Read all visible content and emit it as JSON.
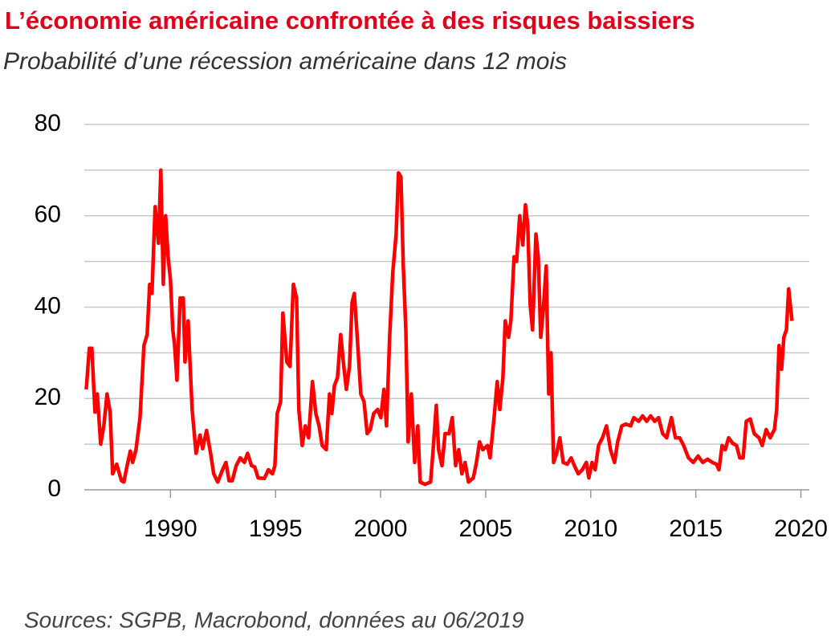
{
  "chart_data": {
    "type": "line",
    "title": "L’économie américaine confrontée à des risques baissiers",
    "subtitle": "Probabilité d’une récession américaine dans 12 mois",
    "source": "Sources: SGPB, Macrobond, données au 06/2019",
    "x": [
      1985.99,
      1986.14,
      1986.26,
      1986.41,
      1986.52,
      1986.68,
      1986.83,
      1986.98,
      1987.13,
      1987.25,
      1987.44,
      1987.67,
      1987.78,
      1987.97,
      1988.09,
      1988.2,
      1988.36,
      1988.55,
      1988.74,
      1988.89,
      1989.01,
      1989.12,
      1989.27,
      1989.43,
      1989.54,
      1989.66,
      1989.77,
      1989.89,
      1990.0,
      1990.11,
      1990.19,
      1990.31,
      1990.46,
      1990.61,
      1990.69,
      1990.84,
      1991.03,
      1991.22,
      1991.41,
      1991.53,
      1991.72,
      1991.91,
      1992.06,
      1992.25,
      1992.48,
      1992.64,
      1992.79,
      1992.94,
      1993.13,
      1993.32,
      1993.52,
      1993.67,
      1993.86,
      1994.01,
      1994.17,
      1994.47,
      1994.66,
      1994.85,
      1994.97,
      1995.08,
      1995.24,
      1995.35,
      1995.54,
      1995.69,
      1995.85,
      1996.0,
      1996.11,
      1996.27,
      1996.42,
      1996.57,
      1996.76,
      1996.92,
      1997.07,
      1997.22,
      1997.41,
      1997.57,
      1997.68,
      1997.8,
      1997.95,
      1998.1,
      1998.25,
      1998.37,
      1998.52,
      1998.64,
      1998.75,
      1998.9,
      1999.06,
      1999.21,
      1999.36,
      1999.51,
      1999.67,
      1999.86,
      2000.01,
      2000.16,
      2000.28,
      2000.43,
      2000.58,
      2000.74,
      2000.85,
      2000.97,
      2001.08,
      2001.2,
      2001.31,
      2001.46,
      2001.62,
      2001.77,
      2001.88,
      2002.11,
      2002.38,
      2002.5,
      2002.65,
      2002.76,
      2002.92,
      2003.07,
      2003.26,
      2003.41,
      2003.57,
      2003.72,
      2003.87,
      2004.02,
      2004.18,
      2004.41,
      2004.56,
      2004.71,
      2004.86,
      2005.09,
      2005.21,
      2005.4,
      2005.55,
      2005.67,
      2005.82,
      2005.93,
      2006.09,
      2006.2,
      2006.35,
      2006.47,
      2006.62,
      2006.77,
      2006.89,
      2007.0,
      2007.12,
      2007.23,
      2007.39,
      2007.5,
      2007.62,
      2007.73,
      2007.88,
      2008.0,
      2008.11,
      2008.23,
      2008.38,
      2008.53,
      2008.69,
      2008.88,
      2009.07,
      2009.22,
      2009.41,
      2009.6,
      2009.79,
      2009.91,
      2010.06,
      2010.21,
      2010.37,
      2010.56,
      2010.75,
      2010.94,
      2011.13,
      2011.28,
      2011.48,
      2011.67,
      2011.9,
      2012.05,
      2012.28,
      2012.47,
      2012.66,
      2012.85,
      2013.04,
      2013.23,
      2013.42,
      2013.61,
      2013.84,
      2014.03,
      2014.23,
      2014.42,
      2014.65,
      2014.88,
      2015.11,
      2015.33,
      2015.56,
      2015.79,
      2015.98,
      2016.1,
      2016.25,
      2016.4,
      2016.56,
      2016.75,
      2016.94,
      2017.09,
      2017.25,
      2017.4,
      2017.59,
      2017.78,
      2018.01,
      2018.16,
      2018.35,
      2018.54,
      2018.74,
      2018.85,
      2018.96,
      2019.08,
      2019.19,
      2019.31,
      2019.42,
      2019.58
    ],
    "series": [
      {
        "color": "#ff0000",
        "values": [
          22,
          31,
          31,
          17,
          21,
          10,
          14,
          21,
          17,
          3.5,
          5.6,
          2,
          1.7,
          6,
          8.5,
          6,
          8.8,
          15.8,
          31.6,
          34,
          45,
          43,
          62,
          54,
          70,
          45,
          60,
          51,
          46,
          35,
          32,
          24,
          42,
          42,
          28,
          37,
          17.6,
          8,
          12,
          9,
          13,
          8,
          3.5,
          1.7,
          4.4,
          6,
          2,
          2,
          5.3,
          7,
          6,
          8,
          5.3,
          5,
          2.6,
          2.5,
          4.4,
          3.5,
          5.3,
          16.7,
          19.3,
          38.7,
          28,
          27,
          45,
          42,
          17.6,
          9.7,
          14,
          11.4,
          23.7,
          16.7,
          14,
          9.7,
          8.8,
          21,
          16.7,
          22.8,
          24.6,
          34,
          27,
          22,
          27,
          41,
          43,
          32.5,
          21,
          19.3,
          12.3,
          13.2,
          16.7,
          17.6,
          15.8,
          22,
          14,
          33.4,
          47.5,
          56,
          69.4,
          68.5,
          49,
          35,
          10.5,
          21,
          6,
          14,
          1.7,
          1.2,
          1.7,
          8.8,
          18.5,
          8.8,
          5.3,
          12.3,
          12.3,
          15.8,
          5.3,
          8.8,
          3.5,
          6,
          1.7,
          2.6,
          6,
          10.5,
          8.8,
          9.7,
          7,
          15.8,
          23.7,
          17.6,
          24.6,
          37,
          33.4,
          37,
          51,
          50,
          60,
          53.6,
          62.4,
          58,
          40.4,
          35,
          56,
          51,
          33.4,
          38.7,
          49,
          21,
          30,
          6,
          8,
          11.4,
          6,
          5.6,
          7,
          5.3,
          3.5,
          4.4,
          6,
          2.6,
          6,
          4.4,
          9.7,
          11.4,
          14,
          8.8,
          6,
          10.5,
          14,
          14.4,
          14,
          15.8,
          15,
          16.2,
          15,
          16.2,
          15,
          15.8,
          12.3,
          11.4,
          15.8,
          11.4,
          11.4,
          9.7,
          7,
          6,
          7.4,
          6,
          6.7,
          6,
          5.6,
          4.4,
          9.7,
          8.8,
          11.4,
          10.2,
          9.7,
          7,
          7,
          15,
          15.5,
          12.3,
          11.4,
          9.7,
          13.2,
          11.4,
          13.2,
          17.6,
          31.6,
          26.4,
          33.4,
          35,
          44,
          37
        ]
      }
    ],
    "xlim": [
      1985.9,
      2020.4
    ],
    "xticks": [
      1990,
      1995,
      2000,
      2005,
      2010,
      2015,
      2020
    ],
    "ylim": [
      0,
      80
    ],
    "yticks": [
      0,
      20,
      40,
      60,
      80
    ],
    "minor_yticks": [
      10,
      30,
      50,
      70
    ],
    "grid": true
  }
}
